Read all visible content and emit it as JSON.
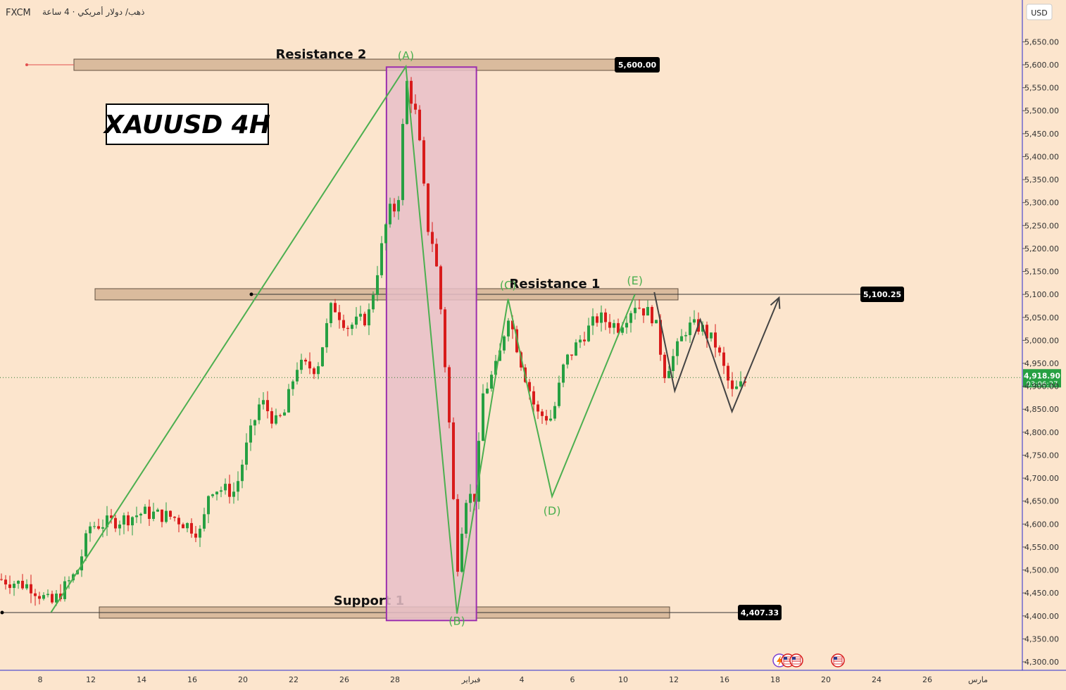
{
  "header": {
    "symbol": "FXCM",
    "subtitle": "ذهب/ دولار أمريكي · 4 ساعة"
  },
  "currency": "USD",
  "title_box": "XAUUSD 4H",
  "colors": {
    "background": "#fce5cd",
    "up": "#26a042",
    "down": "#d81b1b",
    "zone_fill": "#d9b99b",
    "zone_stroke": "#5a4a3a",
    "highlight_fill": "#e8bfc8",
    "highlight_stroke": "#9b2fae",
    "wave": "#4caf50",
    "projection": "#444444",
    "price_tag": "#000000",
    "current_tag": "#26a042"
  },
  "icons": [
    "lightning-icon",
    "us-flag-icon",
    "us-flag-icon",
    "us-flag-icon"
  ],
  "chart_data": {
    "type": "candlestick",
    "y_ticks": [
      "5,650.00",
      "5,600.00",
      "5,550.00",
      "5,500.00",
      "5,450.00",
      "5,400.00",
      "5,350.00",
      "5,300.00",
      "5,250.00",
      "5,200.00",
      "5,150.00",
      "5,100.00",
      "5,050.00",
      "5,000.00",
      "4,950.00",
      "4,900.00",
      "4,850.00",
      "4,800.00",
      "4,750.00",
      "4,700.00",
      "4,650.00",
      "4,600.00",
      "4,550.00",
      "4,500.00",
      "4,450.00",
      "4,400.00",
      "4,350.00",
      "4,300.00"
    ],
    "x_ticks": [
      "8",
      "12",
      "14",
      "16",
      "20",
      "22",
      "26",
      "28",
      "فبراير",
      "4",
      "6",
      "10",
      "12",
      "16",
      "18",
      "20",
      "24",
      "26",
      "مارس"
    ],
    "ylim": [
      4280,
      5700
    ],
    "zones": [
      {
        "label": "Resistance 2",
        "price": 5600,
        "tag": "5,600.00"
      },
      {
        "label": "Resistance 1",
        "price": 5100.25,
        "tag": "5,100.25"
      },
      {
        "label": "Support 1",
        "price": 4407.33,
        "tag": "4,407.33"
      }
    ],
    "current_price": {
      "price": 4918.9,
      "label": "4,918.90",
      "countdown": "03:06:27"
    },
    "wave_labels": [
      "(A)",
      "(B)",
      "(C)",
      "(D)",
      "(E)"
    ],
    "waves": [
      {
        "label": "(A)",
        "t": 0.397,
        "price": 5596
      },
      {
        "label": "(B)",
        "t": 0.447,
        "price": 4405
      },
      {
        "label": "(C)",
        "t": 0.497,
        "price": 5090
      },
      {
        "label": "(D)",
        "t": 0.54,
        "price": 4660
      },
      {
        "label": "(E)",
        "t": 0.621,
        "price": 5100
      }
    ],
    "wave_origin": {
      "t": 0.05,
      "price": 4408
    },
    "projection": [
      {
        "t": 0.64,
        "price": 5105
      },
      {
        "t": 0.66,
        "price": 4890
      },
      {
        "t": 0.685,
        "price": 5045
      },
      {
        "t": 0.716,
        "price": 4845
      },
      {
        "t": 0.762,
        "price": 5093
      }
    ],
    "highlight": {
      "t_start": 0.378,
      "t_end": 0.466,
      "price_top": 5595,
      "price_bottom": 4390
    },
    "keypoints": [
      {
        "t": 0.0,
        "price": 4480
      },
      {
        "t": 0.03,
        "price": 4465
      },
      {
        "t": 0.05,
        "price": 4425
      },
      {
        "t": 0.075,
        "price": 4495
      },
      {
        "t": 0.088,
        "price": 4595
      },
      {
        "t": 0.12,
        "price": 4610
      },
      {
        "t": 0.14,
        "price": 4625
      },
      {
        "t": 0.17,
        "price": 4615
      },
      {
        "t": 0.197,
        "price": 4580
      },
      {
        "t": 0.205,
        "price": 4680
      },
      {
        "t": 0.23,
        "price": 4670
      },
      {
        "t": 0.24,
        "price": 4760
      },
      {
        "t": 0.255,
        "price": 4870
      },
      {
        "t": 0.27,
        "price": 4820
      },
      {
        "t": 0.278,
        "price": 4840
      },
      {
        "t": 0.29,
        "price": 4945
      },
      {
        "t": 0.31,
        "price": 4940
      },
      {
        "t": 0.325,
        "price": 5080
      },
      {
        "t": 0.34,
        "price": 5030
      },
      {
        "t": 0.36,
        "price": 5050
      },
      {
        "t": 0.368,
        "price": 5140
      },
      {
        "t": 0.38,
        "price": 5280
      },
      {
        "t": 0.389,
        "price": 5290
      },
      {
        "t": 0.397,
        "price": 5570
      },
      {
        "t": 0.408,
        "price": 5480
      },
      {
        "t": 0.418,
        "price": 5250
      },
      {
        "t": 0.425,
        "price": 5200
      },
      {
        "t": 0.432,
        "price": 5050
      },
      {
        "t": 0.44,
        "price": 4800
      },
      {
        "t": 0.447,
        "price": 4500
      },
      {
        "t": 0.455,
        "price": 4660
      },
      {
        "t": 0.465,
        "price": 4660
      },
      {
        "t": 0.472,
        "price": 4880
      },
      {
        "t": 0.487,
        "price": 4950
      },
      {
        "t": 0.497,
        "price": 5060
      },
      {
        "t": 0.51,
        "price": 4950
      },
      {
        "t": 0.525,
        "price": 4840
      },
      {
        "t": 0.54,
        "price": 4830
      },
      {
        "t": 0.552,
        "price": 4950
      },
      {
        "t": 0.57,
        "price": 5010
      },
      {
        "t": 0.585,
        "price": 5050
      },
      {
        "t": 0.605,
        "price": 5030
      },
      {
        "t": 0.621,
        "price": 5080
      },
      {
        "t": 0.64,
        "price": 5050
      },
      {
        "t": 0.65,
        "price": 4930
      },
      {
        "t": 0.66,
        "price": 4970
      },
      {
        "t": 0.672,
        "price": 5030
      },
      {
        "t": 0.685,
        "price": 5030
      },
      {
        "t": 0.7,
        "price": 4990
      },
      {
        "t": 0.716,
        "price": 4885
      },
      {
        "t": 0.732,
        "price": 4915
      }
    ]
  }
}
